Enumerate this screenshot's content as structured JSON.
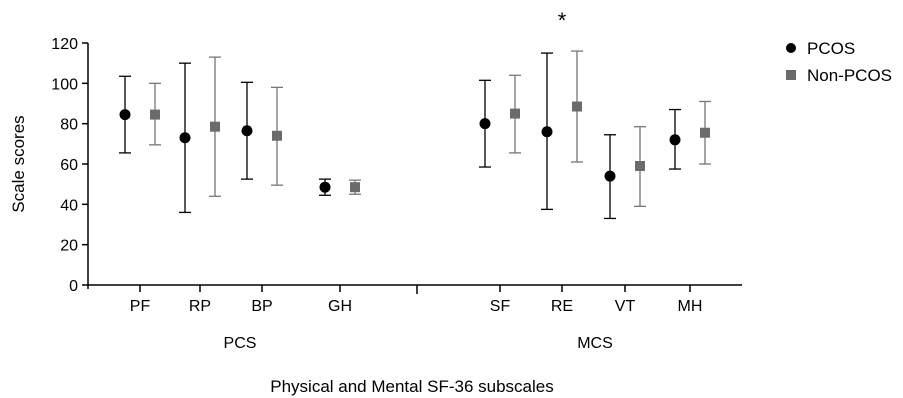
{
  "chart_data": {
    "type": "scatter",
    "xlabel": "Physical and Mental SF-36 subscales",
    "ylabel": "Scale scores",
    "ylim": [
      0,
      120
    ],
    "yticks": [
      0,
      20,
      40,
      60,
      80,
      100,
      120
    ],
    "groups": [
      {
        "label": "PCS",
        "categories": [
          "PF",
          "RP",
          "BP",
          "GH"
        ]
      },
      {
        "label": "MCS",
        "categories": [
          "SF",
          "RE",
          "VT",
          "MH"
        ]
      }
    ],
    "categories": [
      "PF",
      "RP",
      "BP",
      "GH",
      "SF",
      "RE",
      "VT",
      "MH"
    ],
    "series": [
      {
        "name": "PCOS",
        "color": "#000000",
        "marker": "circle",
        "mean": [
          84.5,
          73,
          76.5,
          48.5,
          80,
          76,
          54,
          72
        ],
        "error_low": [
          65.5,
          36,
          52.5,
          44.5,
          58.5,
          37.5,
          33,
          57.5
        ],
        "error_high": [
          103.5,
          110,
          100.5,
          52.5,
          101.5,
          115,
          74.5,
          87
        ]
      },
      {
        "name": "Non-PCOS",
        "color": "#6b6b6b",
        "marker": "square",
        "mean": [
          84.5,
          78.5,
          74,
          48.5,
          85,
          88.5,
          59,
          75.5
        ],
        "error_low": [
          69.5,
          44,
          49.5,
          45,
          65.5,
          61,
          39,
          60
        ],
        "error_high": [
          100,
          113,
          98,
          52,
          104,
          116,
          78.5,
          91
        ]
      }
    ],
    "annotations": [
      {
        "text": "*",
        "category": "RE"
      }
    ],
    "legend_position": "top-right",
    "grid": false
  }
}
